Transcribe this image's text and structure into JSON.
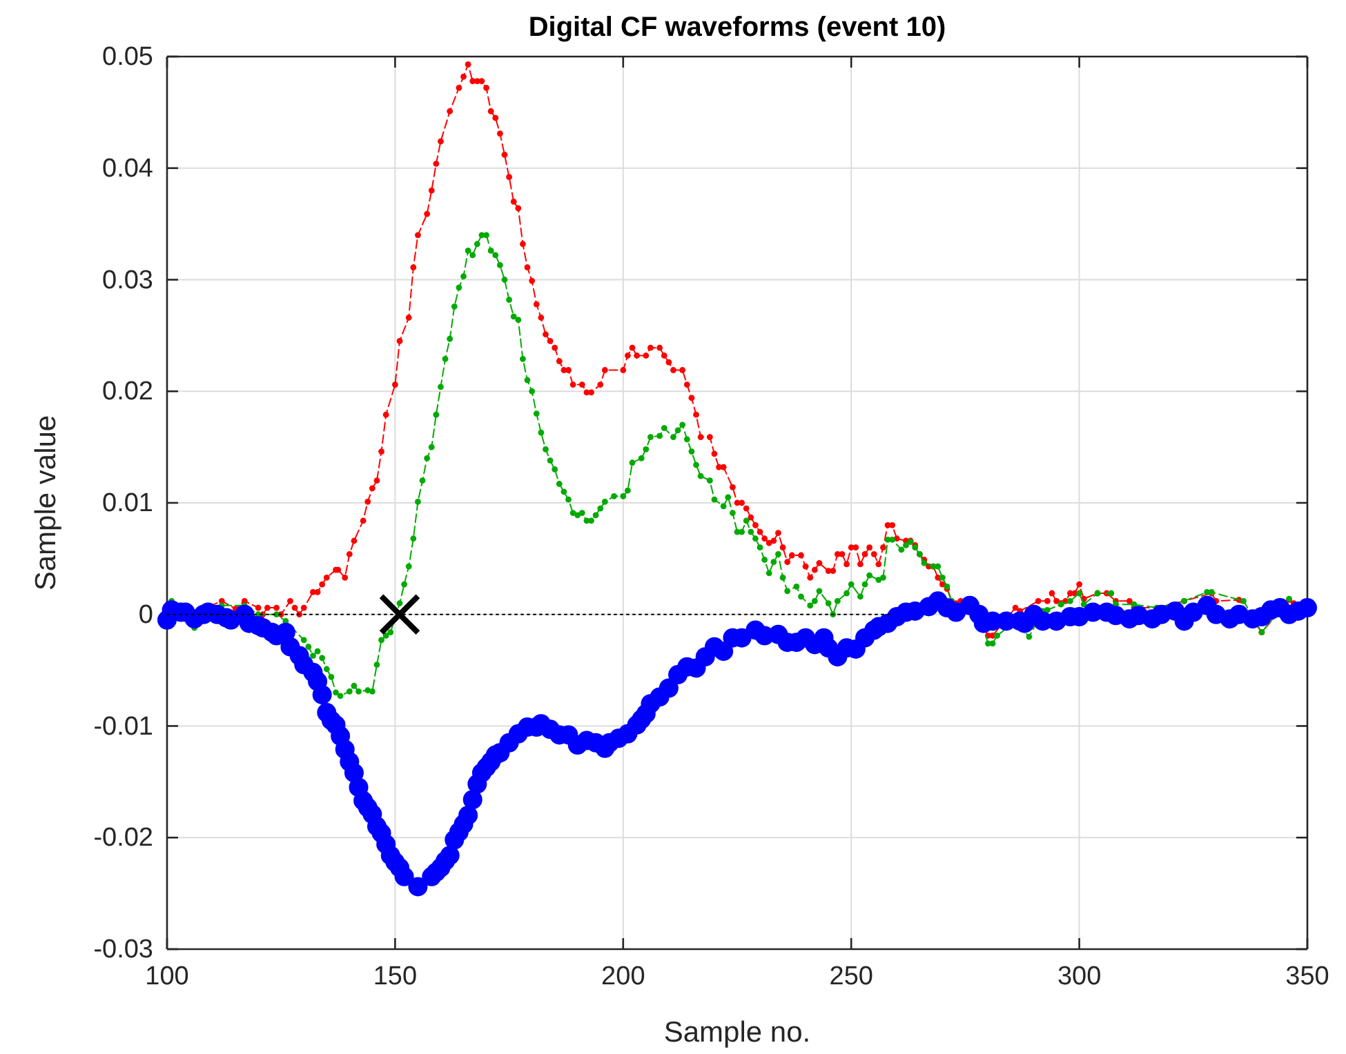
{
  "chart_data": {
    "type": "line",
    "title": "Digital CF waveforms (event 10)",
    "xlabel": "Sample no.",
    "ylabel": "Sample value",
    "xlim": [
      100,
      350
    ],
    "ylim": [
      -0.03,
      0.05
    ],
    "xticks": [
      100,
      150,
      200,
      250,
      300,
      350
    ],
    "yticks": [
      -0.03,
      -0.02,
      -0.01,
      0,
      0.01,
      0.02,
      0.03,
      0.04,
      0.05
    ],
    "grid": true,
    "series": [
      {
        "color": "#ff0000",
        "marker": "circle",
        "line_style": "dashed",
        "x": [
          104,
          108,
          112,
          115,
          117,
          120,
          121,
          122,
          124,
          125,
          127,
          128,
          129,
          130,
          132,
          133,
          134,
          135,
          137,
          137.5,
          139,
          140,
          141,
          143,
          144,
          145,
          146,
          147,
          148,
          150,
          151,
          153,
          154,
          155,
          157,
          158,
          159,
          160,
          162,
          164,
          165,
          166,
          167,
          168,
          169,
          170,
          171,
          172,
          173,
          174,
          175,
          176,
          177,
          178,
          179,
          180,
          181,
          182,
          183,
          184,
          185,
          186,
          187,
          188,
          189,
          191,
          192,
          193,
          195,
          196,
          200,
          201,
          202,
          203,
          205,
          206,
          208,
          209,
          210,
          211,
          213,
          214,
          215,
          216,
          217,
          219,
          220,
          221,
          222,
          224,
          225,
          226,
          227,
          228,
          229,
          230,
          231,
          232,
          233,
          234,
          235,
          236,
          237,
          239,
          240,
          241,
          242,
          243,
          245,
          246,
          247,
          248,
          249,
          250,
          251,
          252,
          253,
          254,
          255,
          256,
          257,
          258,
          259,
          260,
          262,
          263,
          264,
          265,
          266,
          267,
          268,
          269,
          270,
          271,
          272,
          273,
          274,
          275,
          279,
          280,
          281,
          286,
          287,
          291,
          293,
          294,
          295,
          297,
          298,
          299,
          300,
          301,
          304,
          306,
          308,
          311,
          312,
          317,
          323,
          329,
          330,
          335,
          340,
          346,
          347
        ],
        "values": [
          0.0005,
          0.0005,
          0.0012,
          0.0005,
          0.0012,
          0.0006,
          0,
          0.0006,
          0.0006,
          0,
          0.0012,
          0.0006,
          0,
          0.0006,
          0.002,
          0.002,
          0.0027,
          0.0033,
          0.004,
          0.004,
          0.0033,
          0.0054,
          0.0066,
          0.0084,
          0.0101,
          0.0113,
          0.012,
          0.0146,
          0.0179,
          0.0206,
          0.0245,
          0.0266,
          0.0311,
          0.034,
          0.0359,
          0.038,
          0.0404,
          0.0424,
          0.0451,
          0.0472,
          0.0482,
          0.0493,
          0.0478,
          0.0478,
          0.0478,
          0.0472,
          0.0451,
          0.0445,
          0.0431,
          0.0412,
          0.0392,
          0.037,
          0.0364,
          0.0332,
          0.0311,
          0.0299,
          0.0278,
          0.0266,
          0.0251,
          0.0245,
          0.0239,
          0.0227,
          0.0219,
          0.0219,
          0.0206,
          0.0206,
          0.0199,
          0.0199,
          0.0206,
          0.0219,
          0.0219,
          0.0232,
          0.0239,
          0.0232,
          0.0232,
          0.0239,
          0.0239,
          0.0232,
          0.0226,
          0.0219,
          0.0219,
          0.0206,
          0.0194,
          0.0179,
          0.0159,
          0.0159,
          0.0144,
          0.0132,
          0.0132,
          0.0114,
          0.01,
          0.01,
          0.0095,
          0.0087,
          0.008,
          0.0074,
          0.0068,
          0.0064,
          0.0066,
          0.0073,
          0.006,
          0.0047,
          0.0053,
          0.0053,
          0.0043,
          0.0033,
          0.004,
          0.0046,
          0.0039,
          0.0039,
          0.0054,
          0.0054,
          0.0045,
          0.006,
          0.006,
          0.0045,
          0.0054,
          0.006,
          0.0054,
          0.0045,
          0.006,
          0.008,
          0.008,
          0.0068,
          0.0066,
          0.0066,
          0.0062,
          0.0054,
          0.0049,
          0.0043,
          0.0043,
          0.0033,
          0.0027,
          0.0023,
          0.0012,
          0.001,
          0.0012,
          0.0006,
          -0.0012,
          -0.0019,
          -0.0019,
          0.0006,
          0.0003,
          0.0012,
          0.0012,
          0.0019,
          0.0012,
          0.0012,
          0.0019,
          0.0019,
          0.0027,
          0.0014,
          0.0019,
          0.0019,
          0.0012,
          0.0012,
          0.0006,
          0.0006,
          0.0012,
          0.0019,
          0.0012,
          0.0013,
          -0.0016,
          0.0013,
          0.001
        ]
      },
      {
        "color": "#00aa00",
        "marker": "circle",
        "line_style": "dashed",
        "x": [
          100,
          101,
          104,
          106,
          109,
          112,
          117,
          120,
          124,
          126,
          130,
          131,
          132,
          133,
          134,
          135,
          136,
          137,
          138,
          140,
          141,
          142,
          144,
          145,
          146,
          147,
          148,
          149,
          151,
          152,
          153,
          154,
          155,
          156,
          157,
          158,
          159,
          160,
          161,
          162,
          163,
          164,
          165,
          166,
          167,
          168,
          169,
          170,
          171,
          172,
          173,
          174,
          175,
          176,
          177,
          178,
          179,
          180,
          181,
          182,
          183,
          184,
          185,
          186,
          187,
          188,
          189,
          190,
          191,
          192,
          193,
          194,
          195,
          196,
          198,
          200,
          201,
          202,
          204,
          205,
          206,
          208,
          209,
          211,
          212,
          213,
          214,
          215,
          216,
          217,
          219,
          220,
          222,
          223,
          224,
          225,
          226,
          227,
          228,
          229,
          230,
          231,
          232,
          233,
          234,
          235,
          236,
          238,
          239,
          241,
          242,
          243,
          245,
          246,
          247,
          249,
          250,
          252,
          253,
          254,
          256,
          257,
          258,
          259,
          261,
          262,
          263,
          264,
          265,
          266,
          268,
          269,
          270,
          271,
          272,
          274,
          278,
          280,
          281,
          282,
          286,
          289,
          292,
          293,
          296,
          298,
          300,
          301,
          304,
          307,
          308,
          312,
          317,
          323,
          328,
          329,
          336,
          340,
          346
        ],
        "values": [
          0,
          0.0012,
          0.0003,
          -0.0012,
          0,
          0.0008,
          0.0008,
          0,
          0,
          -0.0006,
          -0.0023,
          -0.0029,
          -0.0037,
          -0.0033,
          -0.0039,
          -0.0049,
          -0.0056,
          -0.007,
          -0.0073,
          -0.0069,
          -0.0064,
          -0.0069,
          -0.0068,
          -0.0069,
          -0.0045,
          -0.0023,
          -0.0019,
          -0.0016,
          0.001,
          0.0027,
          0.0043,
          0.0068,
          0.0101,
          0.012,
          0.014,
          0.015,
          0.0179,
          0.0204,
          0.0229,
          0.0247,
          0.0276,
          0.0293,
          0.0303,
          0.0326,
          0.0322,
          0.0332,
          0.034,
          0.034,
          0.0326,
          0.0322,
          0.0313,
          0.03,
          0.0282,
          0.0267,
          0.0264,
          0.0229,
          0.021,
          0.02,
          0.018,
          0.0163,
          0.0148,
          0.0138,
          0.013,
          0.0117,
          0.011,
          0.0103,
          0.0091,
          0.0089,
          0.0091,
          0.0084,
          0.0084,
          0.0089,
          0.0095,
          0.0101,
          0.0106,
          0.0106,
          0.0111,
          0.0136,
          0.014,
          0.0148,
          0.0159,
          0.016,
          0.0167,
          0.0159,
          0.0165,
          0.017,
          0.0157,
          0.0146,
          0.0134,
          0.0124,
          0.012,
          0.0103,
          0.0097,
          0.0105,
          0.0091,
          0.0074,
          0.0074,
          0.0084,
          0.0074,
          0.0068,
          0.006,
          0.0049,
          0.0037,
          0.0047,
          0.0054,
          0.0033,
          0.0021,
          0.0025,
          0.0016,
          0.0008,
          0.0012,
          0.0021,
          0.001,
          0,
          0.0012,
          0.0019,
          0.0027,
          0.0016,
          0.0027,
          0.0035,
          0.0031,
          0.0033,
          0.0067,
          0.0067,
          0.0058,
          0.0062,
          0.0065,
          0.006,
          0.0054,
          0.0046,
          0.0043,
          0.0043,
          0.0033,
          0.0025,
          0.0012,
          0.0006,
          0,
          -0.0026,
          -0.0026,
          -0.0019,
          -0.0006,
          -0.002,
          0.0003,
          0.0004,
          0.0009,
          0.0012,
          0.0019,
          0.0009,
          0.0019,
          0.0019,
          0.0009,
          0.0009,
          0.0006,
          0.0012,
          0.002,
          0.002,
          0.0012,
          -0.0016,
          0.0014
        ]
      },
      {
        "type": "scatter",
        "color": "#0000ff",
        "marker": "circle",
        "x": [
          100,
          101,
          103,
          104,
          106,
          108,
          109,
          111,
          113,
          114,
          117,
          118,
          120,
          121,
          123,
          124,
          126,
          127,
          129,
          130,
          132,
          133,
          134,
          135,
          136,
          137,
          138,
          139,
          140,
          141,
          142,
          143,
          144,
          145,
          146,
          147,
          148,
          149,
          150,
          151,
          152,
          155,
          158,
          159,
          160,
          161,
          162,
          163,
          164,
          165,
          166,
          167,
          168,
          169,
          170,
          171,
          172,
          173,
          175,
          177,
          179,
          181,
          182,
          184,
          186,
          188,
          190,
          192,
          194,
          196,
          197,
          199,
          201,
          203,
          204,
          205,
          206,
          208,
          210,
          212,
          214,
          216,
          218,
          220,
          222,
          224,
          226,
          229,
          231,
          234,
          236,
          238,
          240,
          242,
          244,
          245,
          247,
          249,
          251,
          253,
          255,
          256,
          258,
          260,
          262,
          264,
          267,
          269,
          271,
          273,
          276,
          278,
          279,
          281,
          284,
          287,
          288,
          290,
          292,
          295,
          298,
          300,
          303,
          306,
          308,
          311,
          313,
          316,
          318,
          321,
          323,
          325,
          328,
          330,
          333,
          335,
          338,
          340,
          342,
          344,
          346,
          348,
          350
        ],
        "values": [
          -0.0005,
          0.0004,
          0.0002,
          0.0002,
          -0.0004,
          0,
          0.0002,
          0,
          -0.0003,
          -0.0005,
          0,
          -0.0008,
          -0.001,
          -0.0012,
          -0.0016,
          -0.0019,
          -0.0016,
          -0.0029,
          -0.0037,
          -0.0045,
          -0.0052,
          -0.006,
          -0.0072,
          -0.0088,
          -0.0095,
          -0.0099,
          -0.0109,
          -0.0121,
          -0.0132,
          -0.0142,
          -0.0155,
          -0.0167,
          -0.0173,
          -0.0179,
          -0.019,
          -0.0196,
          -0.0206,
          -0.0216,
          -0.0222,
          -0.0227,
          -0.0235,
          -0.0244,
          -0.0235,
          -0.0231,
          -0.0227,
          -0.0221,
          -0.0216,
          -0.0202,
          -0.0195,
          -0.0188,
          -0.018,
          -0.0166,
          -0.0152,
          -0.0142,
          -0.0137,
          -0.0132,
          -0.0126,
          -0.0124,
          -0.0115,
          -0.0107,
          -0.0101,
          -0.0101,
          -0.0098,
          -0.0103,
          -0.0108,
          -0.0108,
          -0.0117,
          -0.0113,
          -0.0115,
          -0.012,
          -0.0115,
          -0.0111,
          -0.0107,
          -0.0099,
          -0.0094,
          -0.0089,
          -0.008,
          -0.0074,
          -0.0066,
          -0.0054,
          -0.0047,
          -0.0048,
          -0.0038,
          -0.0029,
          -0.0033,
          -0.0021,
          -0.0021,
          -0.0014,
          -0.0019,
          -0.0018,
          -0.0025,
          -0.0025,
          -0.0021,
          -0.0027,
          -0.0021,
          -0.003,
          -0.0038,
          -0.003,
          -0.0031,
          -0.0021,
          -0.0014,
          -0.0011,
          -0.0008,
          -0.0002,
          0.0002,
          0.0003,
          0.0007,
          0.0012,
          0.0006,
          0.0002,
          0.0008,
          0,
          -0.0008,
          -0.0006,
          -0.0006,
          -0.0006,
          -0.0008,
          0,
          -0.0006,
          -0.0006,
          -0.0002,
          -0.0002,
          0.0002,
          0.0002,
          -0.0001,
          -0.0004,
          -0.0001,
          -0.0004,
          0,
          0.0003,
          -0.0006,
          0.0002,
          0.0008,
          0,
          -0.0004,
          0,
          -0.0004,
          -0.0002,
          0.0004,
          0.0006,
          0,
          0.0003,
          0.0006
        ]
      },
      {
        "color": "#000000",
        "marker": "none",
        "line_style": "dotted",
        "x": [
          100,
          259
        ],
        "values": [
          0,
          0
        ]
      },
      {
        "type": "scatter",
        "color": "#000000",
        "marker": "cross",
        "x": [
          151
        ],
        "values": [
          0
        ]
      }
    ]
  }
}
